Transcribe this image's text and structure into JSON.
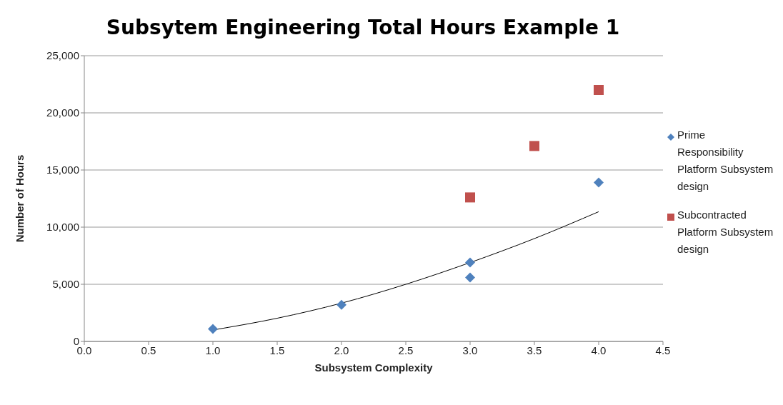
{
  "chart_data": {
    "type": "scatter",
    "title": "Subsytem Engineering Total Hours Example 1",
    "xlabel": "Subsystem Complexity",
    "ylabel": "Number of Hours",
    "series": [
      {
        "name": "Prime Responsibility Platform Subsystem design",
        "color": "#4f81bd",
        "marker": "diamond",
        "x": [
          1,
          2,
          3,
          3,
          4
        ],
        "values": [
          1100,
          3200,
          6900,
          5600,
          13900
        ]
      },
      {
        "name": "Subcontracted Platform Subsystem design",
        "color": "#c0504d",
        "marker": "square",
        "x": [
          3,
          3.5,
          4
        ],
        "values": [
          12600,
          17100,
          22000
        ]
      },
      {
        "type": "line",
        "color": "#000000",
        "marker": "none",
        "x": [
          1,
          1.5,
          2,
          2.5,
          3,
          3.5,
          4
        ],
        "values": [
          1000,
          2030,
          3350,
          5000,
          6900,
          9000,
          11350
        ]
      }
    ],
    "xlim": [
      0,
      4.5
    ],
    "xticks": [
      {
        "value": 0,
        "label": "0.0"
      },
      {
        "value": 0.5,
        "label": "0.5"
      },
      {
        "value": 1,
        "label": "1.0"
      },
      {
        "value": 1.5,
        "label": "1.5"
      },
      {
        "value": 2,
        "label": "2.0"
      },
      {
        "value": 2.5,
        "label": "2.5"
      },
      {
        "value": 3,
        "label": "3.0"
      },
      {
        "value": 3.5,
        "label": "3.5"
      },
      {
        "value": 4,
        "label": "4.0"
      },
      {
        "value": 4.5,
        "label": "4.5"
      }
    ],
    "ylim": [
      0,
      25000
    ],
    "yticks": [
      0,
      {
        "value": 5000,
        "label": "5,000"
      },
      {
        "value": 10000,
        "label": "10,000"
      },
      {
        "value": 15000,
        "label": "15,000"
      },
      {
        "value": 20000,
        "label": "20,000"
      },
      {
        "value": 25000,
        "label": "25,000"
      }
    ],
    "grid": "y",
    "legend": "right"
  }
}
